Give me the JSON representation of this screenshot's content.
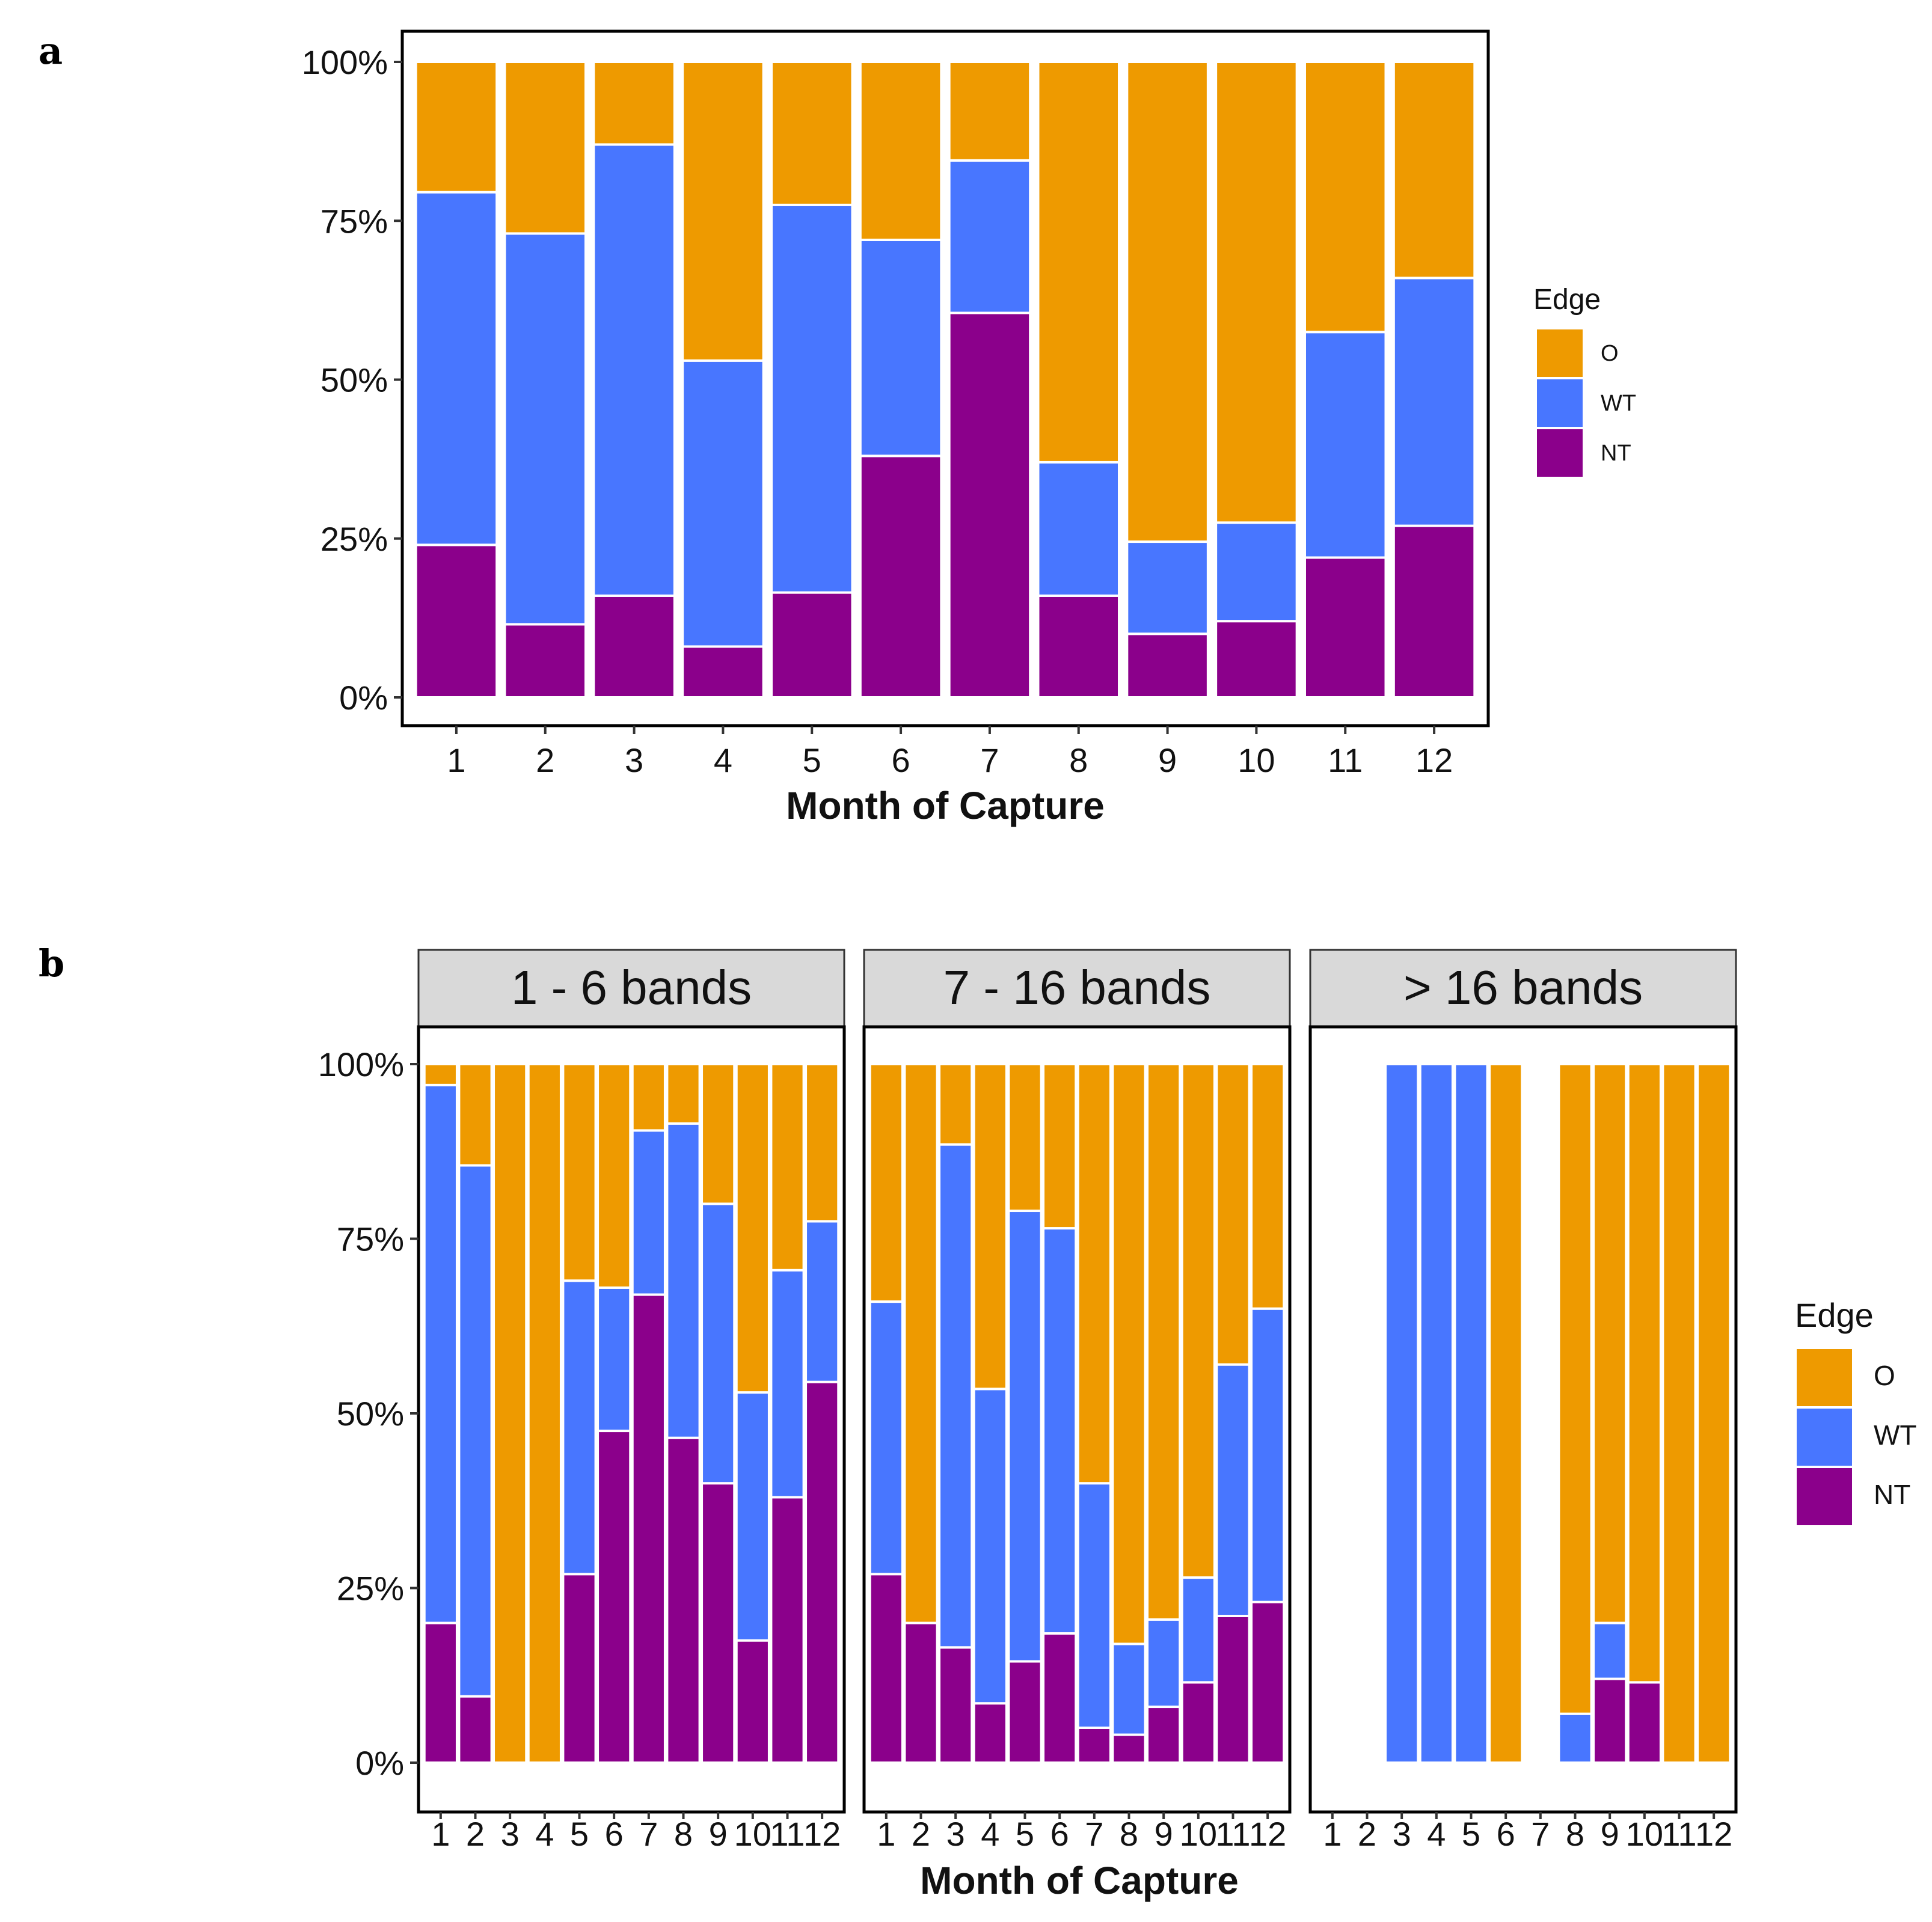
{
  "colors": {
    "O": "#EE9A00",
    "WT": "#4876FF",
    "NT": "#8B008B"
  },
  "chart_data": [
    {
      "panel_label": "a",
      "type": "bar",
      "stacked": "percent",
      "categories": [
        "1",
        "2",
        "3",
        "4",
        "5",
        "6",
        "7",
        "8",
        "9",
        "10",
        "11",
        "12"
      ],
      "series": [
        {
          "name": "NT",
          "values": [
            24,
            11.5,
            16,
            8,
            16.5,
            38,
            60.5,
            16,
            10,
            12,
            22,
            27
          ]
        },
        {
          "name": "WT",
          "values": [
            55.5,
            61.5,
            71,
            45,
            61,
            34,
            24,
            21,
            14.5,
            15.5,
            35.5,
            39
          ]
        },
        {
          "name": "O",
          "values": [
            20.5,
            27,
            13,
            47,
            22.5,
            28,
            15.5,
            63,
            75.5,
            72.5,
            42.5,
            34
          ]
        }
      ],
      "xlabel": "Month of Capture",
      "ylabel": "",
      "yticks": [
        "0%",
        "25%",
        "50%",
        "75%",
        "100%"
      ],
      "ylim": [
        0,
        100
      ],
      "legend": {
        "title": "Edge",
        "position": "right",
        "items": [
          "O",
          "WT",
          "NT"
        ]
      }
    },
    {
      "panel_label": "b",
      "type": "bar",
      "stacked": "percent",
      "facets": [
        {
          "title": "1 - 6 bands",
          "categories": [
            "1",
            "2",
            "3",
            "4",
            "5",
            "6",
            "7",
            "8",
            "9",
            "10",
            "11",
            "12"
          ],
          "series": [
            {
              "name": "NT",
              "values": [
                20,
                9.5,
                0,
                0,
                27,
                47.5,
                67,
                46.5,
                40,
                17.5,
                38,
                54.5
              ]
            },
            {
              "name": "WT",
              "values": [
                77,
                76,
                0,
                0,
                42,
                20.5,
                23.5,
                45,
                40,
                35.5,
                32.5,
                23
              ]
            },
            {
              "name": "O",
              "values": [
                3,
                14.5,
                100,
                100,
                31,
                32,
                9.5,
                8.5,
                20,
                47,
                29.5,
                22.5
              ]
            }
          ]
        },
        {
          "title": "7 - 16 bands",
          "categories": [
            "1",
            "2",
            "3",
            "4",
            "5",
            "6",
            "7",
            "8",
            "9",
            "10",
            "11",
            "12"
          ],
          "series": [
            {
              "name": "NT",
              "values": [
                27,
                20,
                16.5,
                8.5,
                14.5,
                18.5,
                5,
                4,
                8,
                11.5,
                21,
                23
              ]
            },
            {
              "name": "WT",
              "values": [
                39,
                0,
                72,
                45,
                64.5,
                58,
                35,
                13,
                12.5,
                15,
                36,
                42
              ]
            },
            {
              "name": "O",
              "values": [
                34,
                80,
                11.5,
                46.5,
                21,
                23.5,
                60,
                83,
                79.5,
                73.5,
                43,
                35
              ]
            }
          ]
        },
        {
          "title": "> 16 bands",
          "categories": [
            "1",
            "2",
            "3",
            "4",
            "5",
            "6",
            "7",
            "8",
            "9",
            "10",
            "11",
            "12"
          ],
          "series": [
            {
              "name": "NT",
              "values": [
                0,
                0,
                0,
                0,
                0,
                0,
                0,
                0,
                12,
                11.5,
                0,
                0
              ]
            },
            {
              "name": "WT",
              "values": [
                0,
                0,
                100,
                100,
                100,
                0,
                0,
                7,
                8,
                0,
                0,
                0
              ]
            },
            {
              "name": "O",
              "values": [
                0,
                0,
                0,
                0,
                0,
                100,
                0,
                93,
                80,
                88.5,
                100,
                100
              ]
            }
          ]
        }
      ],
      "xlabel": "Month of Capture",
      "ylabel": "",
      "yticks": [
        "0%",
        "25%",
        "50%",
        "75%",
        "100%"
      ],
      "ylim": [
        0,
        100
      ],
      "legend": {
        "title": "Edge",
        "position": "right",
        "items": [
          "O",
          "WT",
          "NT"
        ]
      }
    }
  ]
}
